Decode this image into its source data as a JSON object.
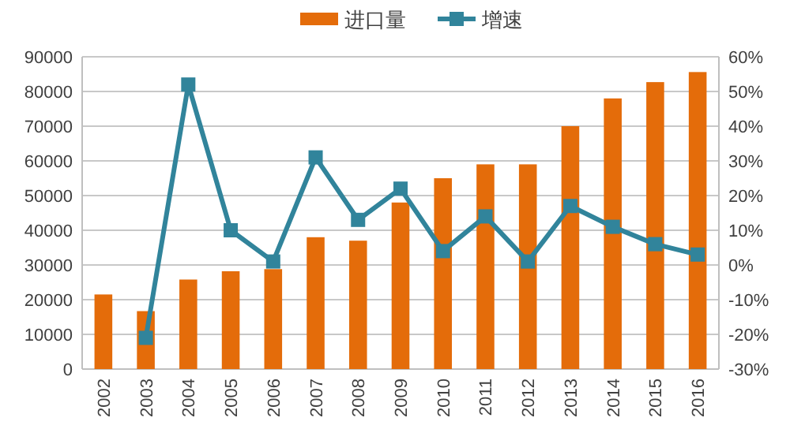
{
  "chart_data": {
    "type": "bar",
    "categories": [
      "2002",
      "2003",
      "2004",
      "2005",
      "2006",
      "2007",
      "2008",
      "2009",
      "2010",
      "2011",
      "2012",
      "2013",
      "2014",
      "2015",
      "2016"
    ],
    "series": [
      {
        "name": "进口量",
        "color": "#e46c0a",
        "values": [
          21500,
          16700,
          25800,
          28200,
          28800,
          38000,
          37000,
          48000,
          55000,
          59000,
          59000,
          70000,
          78000,
          82700,
          85600
        ]
      },
      {
        "name": "增速",
        "type": "line",
        "axis": "y2",
        "color": "#31849b",
        "marker": "square",
        "values": [
          null,
          -21,
          52,
          10,
          1,
          31,
          13,
          22,
          4,
          14,
          1,
          17,
          11,
          6,
          3
        ]
      }
    ],
    "ylim": [
      0,
      90000
    ],
    "yticks": [
      0,
      10000,
      20000,
      30000,
      40000,
      50000,
      60000,
      70000,
      80000,
      90000
    ],
    "y2lim": [
      -30,
      60
    ],
    "y2ticks": [
      {
        "value": -30,
        "label": "-30%"
      },
      {
        "value": -20,
        "label": "-20%"
      },
      {
        "value": -10,
        "label": "-10%"
      },
      {
        "value": 0,
        "label": "0%"
      },
      {
        "value": 10,
        "label": "10%"
      },
      {
        "value": 20,
        "label": "20%"
      },
      {
        "value": 30,
        "label": "30%"
      },
      {
        "value": 40,
        "label": "40%"
      },
      {
        "value": 50,
        "label": "50%"
      },
      {
        "value": 60,
        "label": "60%"
      }
    ],
    "grid": "y",
    "legend": "top"
  }
}
